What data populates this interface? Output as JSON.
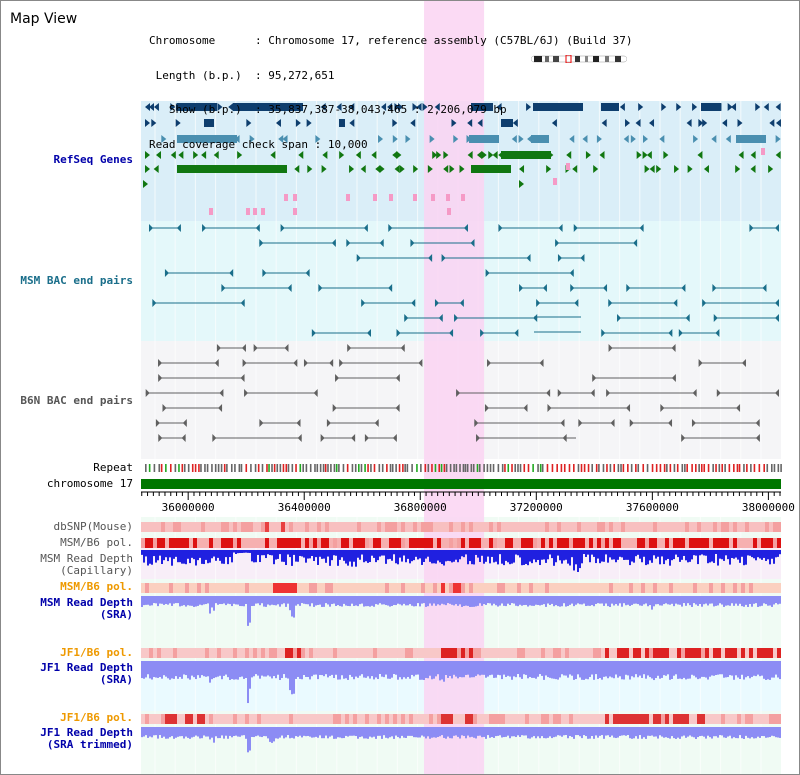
{
  "title": "Map View",
  "info": [
    {
      "key": "Chromosome     ",
      "value": "Chromosome 17, reference assembly (C57BL/6J) (Build 37)"
    },
    {
      "key": " Length (b.p.) ",
      "value": "95,272,651"
    },
    {
      "key": "   Show (b.p.) ",
      "value": "35,837,387-38,043,465 : 2,206,079 bp"
    },
    {
      "key": "Read coverage check span",
      "value": "10,000"
    }
  ],
  "colors": {
    "refseq_bg": "#daeef8",
    "msm_bac_bg": "#e4f8fa",
    "b6n_bac_bg": "#f5f5f7",
    "highlight": "#fad4f2",
    "chromosome": "#007700",
    "refseq_dark": "#0e3e6e",
    "refseq_mid": "#4a8fb0",
    "refseq_green": "#117711",
    "pink": "#f59ac6",
    "msm_pairs": "#1a6e8a",
    "b6n_pairs": "#606060",
    "depth_blue": "#2020e0",
    "depth_light": "#8c8cf4",
    "pol_red": "#ee2222",
    "label_blue": "#0000aa",
    "label_orange": "#ee9900",
    "label_gray": "#555555"
  },
  "tracks": {
    "refseq": "RefSeq Genes",
    "msm_bac": "MSM BAC end pairs",
    "b6n_bac": "B6N BAC end pairs",
    "repeat": "Repeat",
    "chromosome": "chromosome 17",
    "dbsnp": "dbSNP(Mouse)",
    "msm_b6_pol_1": "MSM/B6 pol.",
    "msm_depth_cap_1": "MSM Read Depth",
    "msm_depth_cap_2": "(Capillary)",
    "msm_b6_pol_2": "MSM/B6 pol.",
    "msm_depth_sra_1": "MSM Read Depth",
    "msm_depth_sra_2": "(SRA)",
    "jf1_b6_pol_1": "JF1/B6 pol.",
    "jf1_depth_sra_1": "JF1 Read Depth",
    "jf1_depth_sra_2": "(SRA)",
    "jf1_b6_pol_2": "JF1/B6 pol.",
    "jf1_depth_trim_1": "JF1 Read Depth",
    "jf1_depth_trim_2": "(SRA trimmed)"
  },
  "axis": {
    "start": 35837387,
    "end": 38043465,
    "ticks": [
      "36000000",
      "36400000",
      "36800000",
      "37200000",
      "37600000",
      "38000000"
    ],
    "highlight_range": [
      36813000,
      37020000
    ]
  }
}
